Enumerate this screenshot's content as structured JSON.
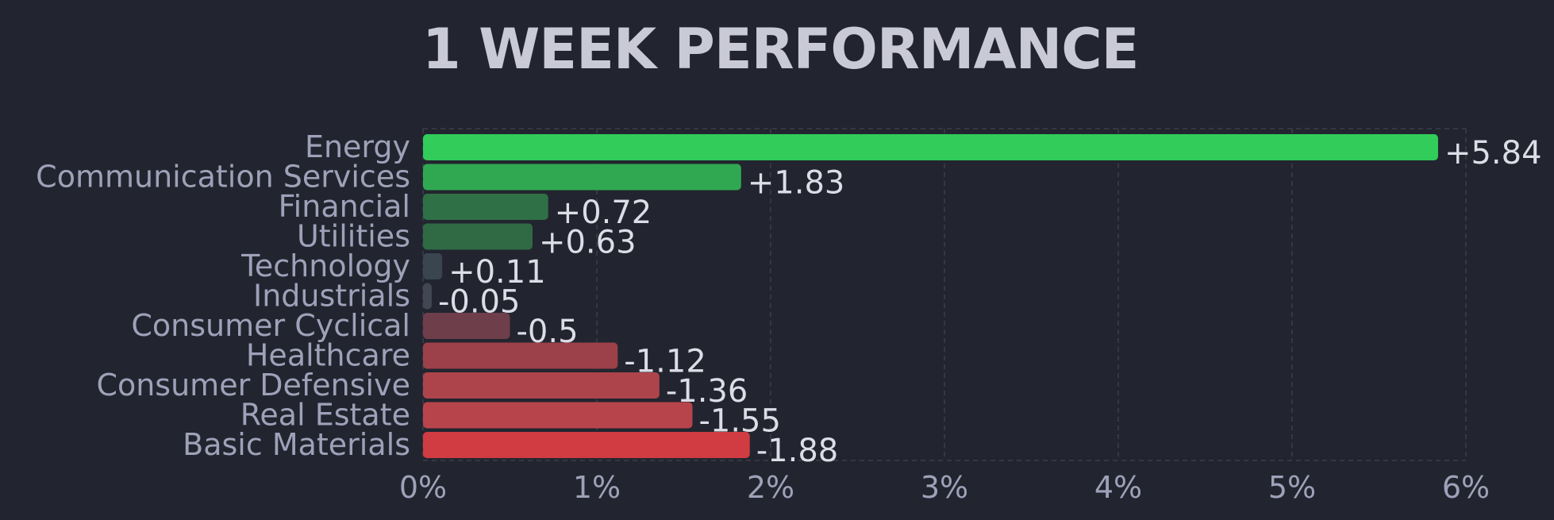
{
  "chart_data": {
    "type": "bar",
    "orientation": "horizontal",
    "title": "1 WEEK PERFORMANCE",
    "categories": [
      "Energy",
      "Communication Services",
      "Financial",
      "Utilities",
      "Technology",
      "Industrials",
      "Consumer Cyclical",
      "Healthcare",
      "Consumer Defensive",
      "Real Estate",
      "Basic Materials"
    ],
    "values": [
      5.84,
      1.83,
      0.72,
      0.63,
      0.11,
      -0.05,
      -0.5,
      -1.12,
      -1.36,
      -1.55,
      -1.88
    ],
    "value_labels": [
      "+5.84",
      "+1.83",
      "+0.72",
      "+0.63",
      "+0.11",
      "-0.05",
      "-0.5",
      "-1.12",
      "-1.36",
      "-1.55",
      "-1.88"
    ],
    "bar_colors": [
      "#31cc5a",
      "#30a852",
      "#2f7046",
      "#2f6a45",
      "#3a4550",
      "#404652",
      "#6e3e4a",
      "#9c404a",
      "#ad444b",
      "#b8444b",
      "#d03c41"
    ],
    "xlim": [
      0,
      6
    ],
    "x_ticks": [
      "0%",
      "1%",
      "2%",
      "3%",
      "4%",
      "5%",
      "6%"
    ],
    "grid": true,
    "colors": {
      "background": "#22252f",
      "grid": "#3a3e4c"
    }
  }
}
